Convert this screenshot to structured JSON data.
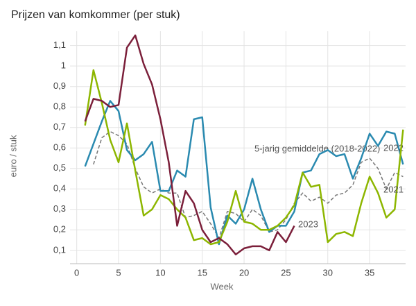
{
  "chart_data": {
    "type": "line",
    "title": "Prijzen van komkommer (per stuk)",
    "x_label": "Week",
    "y_label": "euro / stuk",
    "x": [
      1,
      2,
      3,
      4,
      5,
      6,
      7,
      8,
      9,
      10,
      11,
      12,
      13,
      14,
      15,
      16,
      17,
      18,
      19,
      20,
      21,
      22,
      23,
      24,
      25,
      26,
      27,
      28,
      29,
      30,
      31,
      32,
      33,
      34,
      35,
      36,
      37,
      38,
      39
    ],
    "series": [
      {
        "name": "5-jarig gemiddelde (2018-2022)",
        "color": "#777777",
        "dashed": true,
        "values": [
          null,
          0.52,
          0.65,
          0.68,
          0.66,
          0.62,
          0.5,
          0.41,
          0.38,
          0.4,
          0.38,
          0.38,
          0.26,
          0.27,
          0.29,
          0.23,
          0.16,
          0.29,
          0.28,
          0.24,
          0.3,
          0.27,
          0.19,
          0.2,
          0.25,
          0.33,
          0.38,
          0.34,
          0.36,
          0.33,
          0.37,
          0.38,
          0.42,
          0.53,
          0.55,
          0.5,
          0.4,
          0.48,
          0.46
        ]
      },
      {
        "name": "2022",
        "color": "#2a8ab0",
        "values": [
          0.51,
          0.62,
          0.73,
          0.83,
          0.78,
          0.59,
          0.54,
          0.57,
          0.63,
          0.39,
          0.39,
          0.49,
          0.46,
          0.74,
          0.75,
          0.31,
          0.13,
          0.27,
          0.23,
          0.3,
          0.45,
          0.3,
          0.19,
          0.22,
          0.22,
          0.29,
          0.48,
          0.49,
          0.57,
          0.59,
          0.56,
          0.57,
          0.45,
          0.55,
          0.67,
          0.61,
          0.68,
          0.67,
          0.52
        ]
      },
      {
        "name": "2021",
        "color": "#8db600",
        "values": [
          0.71,
          0.98,
          0.82,
          0.64,
          0.53,
          0.72,
          0.49,
          0.27,
          0.3,
          0.37,
          0.35,
          0.3,
          0.26,
          0.15,
          0.16,
          0.13,
          0.14,
          0.24,
          0.39,
          0.24,
          0.23,
          0.2,
          0.2,
          0.22,
          0.26,
          0.32,
          0.48,
          0.41,
          0.42,
          0.14,
          0.18,
          0.19,
          0.17,
          0.33,
          0.46,
          0.38,
          0.26,
          0.3,
          0.69
        ]
      },
      {
        "name": "2023",
        "color": "#7b1f3a",
        "values": [
          0.73,
          0.84,
          0.83,
          0.8,
          0.81,
          1.09,
          1.15,
          1.01,
          0.91,
          0.74,
          0.53,
          0.22,
          0.39,
          0.33,
          0.2,
          0.14,
          0.16,
          0.13,
          0.08,
          0.11,
          0.12,
          0.12,
          0.1,
          0.19,
          0.14,
          0.22,
          null,
          null,
          null,
          null,
          null,
          null,
          null,
          null,
          null,
          null,
          null,
          null,
          null
        ]
      }
    ],
    "xlim": [
      -0.8,
      39.3
    ],
    "ylim": [
      0.035,
      1.17
    ],
    "xticks": [
      0,
      5,
      10,
      15,
      20,
      25,
      30,
      35
    ],
    "yticks": [
      {
        "value": 0.1,
        "label": "0,1"
      },
      {
        "value": 0.2,
        "label": "0,2"
      },
      {
        "value": 0.3,
        "label": "0,3"
      },
      {
        "value": 0.4,
        "label": "0,4"
      },
      {
        "value": 0.5,
        "label": "0,5"
      },
      {
        "value": 0.6,
        "label": "0,6"
      },
      {
        "value": 0.7,
        "label": "0,7"
      },
      {
        "value": 0.8,
        "label": "0,8"
      },
      {
        "value": 0.9,
        "label": "0,9"
      },
      1,
      {
        "value": 1.1,
        "label": "1,1"
      }
    ],
    "grid": true
  }
}
